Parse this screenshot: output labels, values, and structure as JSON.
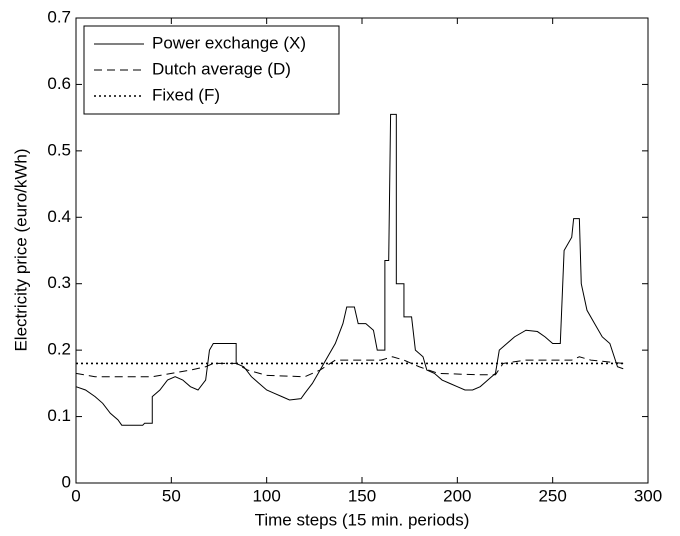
{
  "chart_data": {
    "type": "line",
    "xlabel": "Time steps (15 min. periods)",
    "ylabel": "Electricity price (euro/kWh)",
    "xlim": [
      0,
      300
    ],
    "xticks": [
      0,
      50,
      100,
      150,
      200,
      250,
      300
    ],
    "ylim": [
      0,
      0.7
    ],
    "yticks": [
      0,
      0.1,
      0.2,
      0.3,
      0.4,
      0.5,
      0.6,
      0.7
    ],
    "legend": "upper left",
    "series": [
      {
        "name": "Power exchange (X)",
        "color": "#000000",
        "style": "solid",
        "x": [
          0,
          5,
          10,
          14,
          18,
          22,
          24,
          35,
          36,
          40,
          40,
          44,
          48,
          52,
          56,
          60,
          64,
          68,
          70,
          72,
          84,
          84,
          88,
          92,
          96,
          100,
          104,
          108,
          112,
          118,
          120,
          124,
          128,
          132,
          136,
          140,
          142,
          146,
          148,
          152,
          156,
          158,
          162,
          162,
          164,
          165,
          168,
          168,
          172,
          172,
          176,
          178,
          182,
          184,
          188,
          192,
          196,
          200,
          204,
          208,
          212,
          216,
          220,
          222,
          226,
          230,
          236,
          242,
          246,
          250,
          254,
          256,
          260,
          261,
          264,
          265,
          268,
          272,
          276,
          280,
          284,
          287
        ],
        "values": [
          0.145,
          0.14,
          0.13,
          0.12,
          0.105,
          0.095,
          0.087,
          0.087,
          0.09,
          0.09,
          0.13,
          0.14,
          0.155,
          0.16,
          0.155,
          0.145,
          0.14,
          0.155,
          0.2,
          0.21,
          0.21,
          0.18,
          0.175,
          0.16,
          0.15,
          0.14,
          0.135,
          0.13,
          0.125,
          0.127,
          0.135,
          0.15,
          0.17,
          0.19,
          0.21,
          0.24,
          0.265,
          0.265,
          0.24,
          0.24,
          0.23,
          0.2,
          0.2,
          0.335,
          0.335,
          0.555,
          0.555,
          0.3,
          0.3,
          0.25,
          0.25,
          0.2,
          0.19,
          0.17,
          0.165,
          0.155,
          0.15,
          0.145,
          0.14,
          0.14,
          0.145,
          0.155,
          0.165,
          0.2,
          0.21,
          0.22,
          0.23,
          0.228,
          0.22,
          0.21,
          0.21,
          0.35,
          0.37,
          0.398,
          0.398,
          0.3,
          0.26,
          0.24,
          0.22,
          0.21,
          0.175,
          0.172
        ]
      },
      {
        "name": "Dutch average (D)",
        "color": "#000000",
        "style": "dashed",
        "x": [
          0,
          10,
          40,
          60,
          68,
          72,
          84,
          90,
          100,
          120,
          128,
          136,
          160,
          166,
          172,
          180,
          190,
          210,
          220,
          224,
          236,
          260,
          264,
          270,
          287
        ],
        "values": [
          0.165,
          0.16,
          0.16,
          0.17,
          0.175,
          0.18,
          0.18,
          0.17,
          0.162,
          0.16,
          0.17,
          0.185,
          0.185,
          0.19,
          0.185,
          0.175,
          0.165,
          0.163,
          0.163,
          0.18,
          0.185,
          0.185,
          0.19,
          0.185,
          0.18
        ]
      },
      {
        "name": "Fixed (F)",
        "color": "#000000",
        "style": "dotted",
        "x": [
          0,
          287
        ],
        "values": [
          0.18,
          0.18
        ]
      }
    ]
  }
}
